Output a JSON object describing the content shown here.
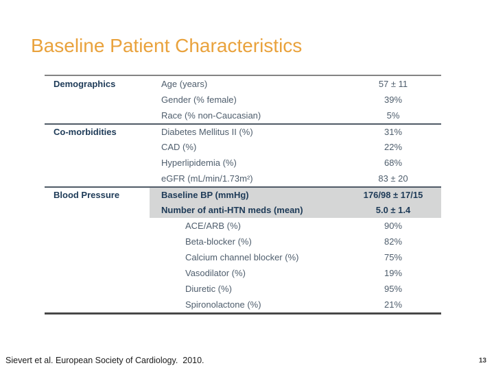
{
  "slide": {
    "title": "Baseline Patient Characteristics",
    "footer": "Sievert et al. European Society of Cardiology.  2010.",
    "page_number": "13"
  },
  "colors": {
    "title": "#E9A23C",
    "section_text": "#1D3A57",
    "row_text": "#4E5D6C",
    "highlight_bg": "#D5D6D6",
    "border_top": "#838383",
    "border_mid": "#4F5A66",
    "border_bottom": "#474747",
    "footer_text": "#1A1A1A",
    "page_text": "#3B3B3B"
  },
  "table": {
    "sections": [
      "Demographics",
      "Co-morbidities",
      "Blood Pressure"
    ],
    "rows": [
      {
        "section": "Demographics",
        "label": "Age (years)",
        "value": "57 ± 11",
        "divider": false,
        "highlight": false,
        "indent": false
      },
      {
        "section": "",
        "label": "Gender (% female)",
        "value": "39%",
        "divider": false,
        "highlight": false,
        "indent": false
      },
      {
        "section": "",
        "label": "Race (% non-Caucasian)",
        "value": "5%",
        "divider": false,
        "highlight": false,
        "indent": false
      },
      {
        "section": "Co-morbidities",
        "label": "Diabetes Mellitus II (%)",
        "value": "31%",
        "divider": true,
        "highlight": false,
        "indent": false
      },
      {
        "section": "",
        "label": "CAD (%)",
        "value": "22%",
        "divider": false,
        "highlight": false,
        "indent": false
      },
      {
        "section": "",
        "label": "Hyperlipidemia (%)",
        "value": "68%",
        "divider": false,
        "highlight": false,
        "indent": false
      },
      {
        "section": "",
        "label": "eGFR (mL/min/1.73m²)",
        "value": "83 ± 20",
        "divider": false,
        "highlight": false,
        "indent": false
      },
      {
        "section": "Blood Pressure",
        "label": "Baseline BP (mmHg)",
        "value": "176/98 ± 17/15",
        "divider": true,
        "highlight": true,
        "indent": false
      },
      {
        "section": "",
        "label": "Number of anti-HTN meds (mean)",
        "value": "5.0 ± 1.4",
        "divider": false,
        "highlight": true,
        "indent": false
      },
      {
        "section": "",
        "label": "ACE/ARB (%)",
        "value": "90%",
        "divider": false,
        "highlight": false,
        "indent": true
      },
      {
        "section": "",
        "label": "Beta-blocker (%)",
        "value": "82%",
        "divider": false,
        "highlight": false,
        "indent": true
      },
      {
        "section": "",
        "label": "Calcium channel blocker (%)",
        "value": "75%",
        "divider": false,
        "highlight": false,
        "indent": true
      },
      {
        "section": "",
        "label": "Vasodilator (%)",
        "value": "19%",
        "divider": false,
        "highlight": false,
        "indent": true
      },
      {
        "section": "",
        "label": "Diuretic (%)",
        "value": "95%",
        "divider": false,
        "highlight": false,
        "indent": true
      },
      {
        "section": "",
        "label": "Spironolactone (%)",
        "value": "21%",
        "divider": false,
        "highlight": false,
        "indent": true
      }
    ]
  }
}
